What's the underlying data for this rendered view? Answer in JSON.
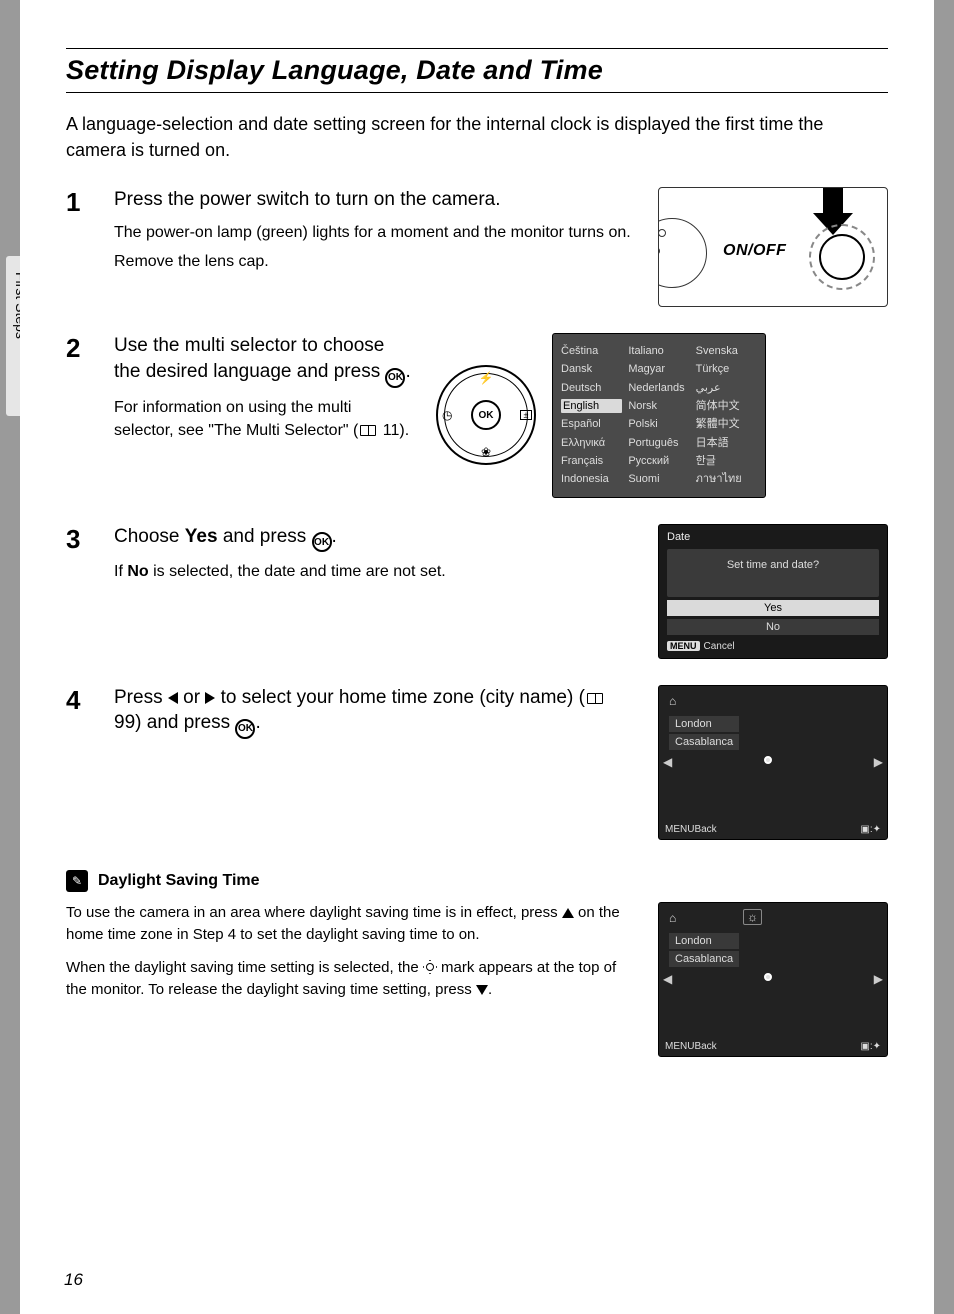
{
  "page_number": "16",
  "sidebar_label": "First Steps",
  "title": "Setting Display Language, Date and Time",
  "intro": "A language-selection and date setting screen for the internal clock is displayed the first time the camera is turned on.",
  "steps": {
    "s1": {
      "num": "1",
      "title": "Press the power switch to turn on the camera.",
      "p1": "The power-on lamp (green) lights for a moment and the monitor turns on.",
      "p2": "Remove the lens cap.",
      "dia_label": "ON/OFF"
    },
    "s2": {
      "num": "2",
      "title_a": "Use the multi selector to choose the desired language and press ",
      "title_b": ".",
      "p1_a": "For information on using the multi selector, see \"The Multi Selector\" (",
      "p1_ref": " 11",
      "p1_b": ").",
      "ok": "OK"
    },
    "s3": {
      "num": "3",
      "title_a": "Choose ",
      "title_yes": "Yes",
      "title_b": " and press ",
      "title_c": ".",
      "p1_a": "If ",
      "p1_no": "No",
      "p1_b": " is selected, the date and time are not set."
    },
    "s4": {
      "num": "4",
      "title_a": "Press ",
      "title_b": " or ",
      "title_c": " to select your home time zone (city name) (",
      "title_ref": " 99",
      "title_d": ") and press ",
      "title_e": "."
    }
  },
  "lcd_lang": {
    "col1": [
      "Čeština",
      "Dansk",
      "Deutsch",
      "English",
      "Español",
      "Ελληνικά",
      "Français",
      "Indonesia"
    ],
    "col2": [
      "Italiano",
      "Magyar",
      "Nederlands",
      "Norsk",
      "Polski",
      "Português",
      "Русский",
      "Suomi"
    ],
    "col3": [
      "Svenska",
      "Türkçe",
      "عربي",
      "简体中文",
      "繁體中文",
      "日本語",
      "한글",
      "ภาษาไทย"
    ],
    "selected_index": 3
  },
  "lcd_date": {
    "header": "Date",
    "question": "Set time and date?",
    "yes": "Yes",
    "no": "No",
    "cancel": "Cancel",
    "menu": "MENU"
  },
  "lcd_map": {
    "city1": "London",
    "city2": "Casablanca",
    "back": "Back",
    "menu": "MENU",
    "corner": "▣:✦"
  },
  "note": {
    "title": "Daylight Saving Time",
    "p1_a": "To use the camera in an area where daylight saving time is in effect, press ",
    "p1_b": " on the home time zone in Step 4 to set the daylight saving time to on.",
    "p2_a": "When the daylight saving time setting is selected, the ",
    "p2_b": " mark appears at the top of the monitor. To release the daylight saving time setting, press ",
    "p2_c": "."
  },
  "colors": {
    "page_bg": "#ffffff",
    "outer_bg": "#9a9a9a",
    "lcd_bg": "#1a1a1a",
    "lcd_panel": "#3a3a3a",
    "lcd_text": "#dddddd",
    "lcd_sel_bg": "#dadada",
    "map_land": "#666666",
    "map_sea": "#2a2a2a"
  }
}
